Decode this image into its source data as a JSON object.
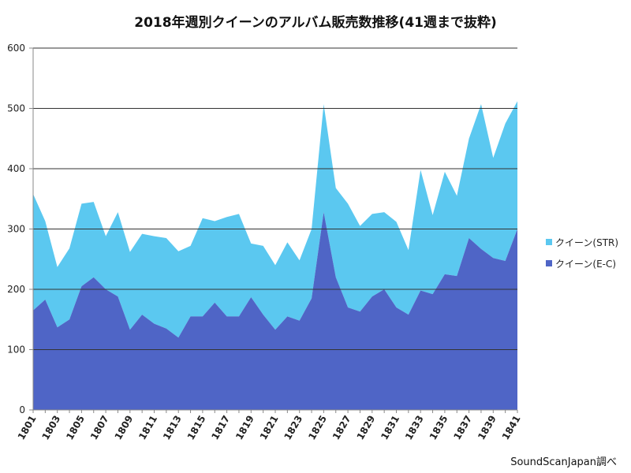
{
  "chart_data": {
    "type": "area",
    "stacked": true,
    "title": "2018年週別クイーンのアルバム販売数推移(41週まで抜粋)",
    "xlabel": "",
    "ylabel": "",
    "ylim": [
      0,
      600
    ],
    "yticks": [
      0,
      100,
      200,
      300,
      400,
      500,
      600
    ],
    "grid": true,
    "legend_position": "right",
    "x": [
      "1801",
      "1802",
      "1803",
      "1804",
      "1805",
      "1806",
      "1807",
      "1808",
      "1809",
      "1810",
      "1811",
      "1812",
      "1813",
      "1814",
      "1815",
      "1816",
      "1817",
      "1818",
      "1819",
      "1820",
      "1821",
      "1822",
      "1823",
      "1824",
      "1825",
      "1826",
      "1827",
      "1828",
      "1829",
      "1830",
      "1831",
      "1832",
      "1833",
      "1834",
      "1835",
      "1836",
      "1837",
      "1838",
      "1839",
      "1840",
      "1841"
    ],
    "xtick_labels": [
      "1801",
      "1803",
      "1805",
      "1807",
      "1809",
      "1811",
      "1813",
      "1815",
      "1817",
      "1819",
      "1821",
      "1823",
      "1825",
      "1827",
      "1829",
      "1831",
      "1833",
      "1835",
      "1837",
      "1839",
      "1841"
    ],
    "series": [
      {
        "name": "クイーン(E-C)",
        "color": "#4f65c6",
        "values": [
          165,
          183,
          137,
          150,
          205,
          220,
          200,
          188,
          133,
          158,
          143,
          135,
          120,
          155,
          155,
          178,
          155,
          155,
          187,
          158,
          133,
          155,
          148,
          185,
          328,
          220,
          170,
          163,
          188,
          200,
          170,
          158,
          198,
          192,
          225,
          222,
          285,
          267,
          252,
          247,
          300
        ]
      },
      {
        "name": "クイーン(STR)",
        "color": "#5bc8f0",
        "values": [
          193,
          130,
          100,
          118,
          137,
          125,
          88,
          140,
          129,
          134,
          145,
          150,
          143,
          117,
          163,
          135,
          165,
          170,
          89,
          114,
          107,
          123,
          100,
          115,
          179,
          148,
          172,
          142,
          137,
          128,
          142,
          107,
          200,
          131,
          170,
          133,
          165,
          240,
          166,
          228,
          212
        ]
      }
    ]
  },
  "source_note": "SoundScanJapan調べ"
}
